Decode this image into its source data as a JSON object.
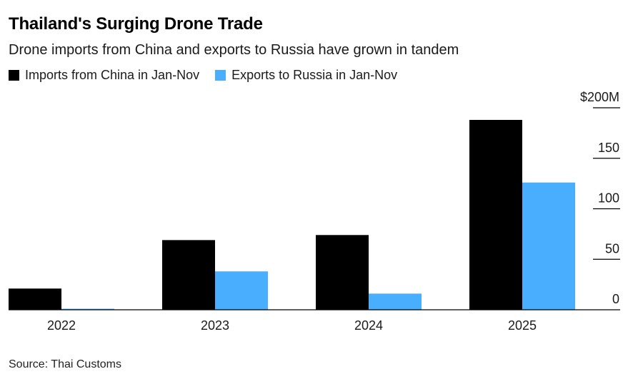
{
  "chart_data": {
    "type": "bar",
    "title": "Thailand's Surging Drone Trade",
    "subtitle": "Drone imports from China and exports to Russia have grown in tandem",
    "categories": [
      "2022",
      "2023",
      "2024",
      "2025"
    ],
    "series": [
      {
        "name": "Imports from China in Jan-Nov",
        "color": "#000000",
        "values": [
          21,
          69,
          74,
          188
        ]
      },
      {
        "name": "Exports to Russia in Jan-Nov",
        "color": "#4aaeff",
        "values": [
          1,
          38,
          16,
          126
        ]
      }
    ],
    "y_ticks": [
      {
        "value": 0,
        "label": "0"
      },
      {
        "value": 50,
        "label": "50"
      },
      {
        "value": 100,
        "label": "100"
      },
      {
        "value": 150,
        "label": "150"
      },
      {
        "value": 200,
        "label": "$200M"
      }
    ],
    "ylim": [
      0,
      200
    ],
    "grid": false,
    "legend": "top-left",
    "source": "Source: Thai Customs"
  }
}
